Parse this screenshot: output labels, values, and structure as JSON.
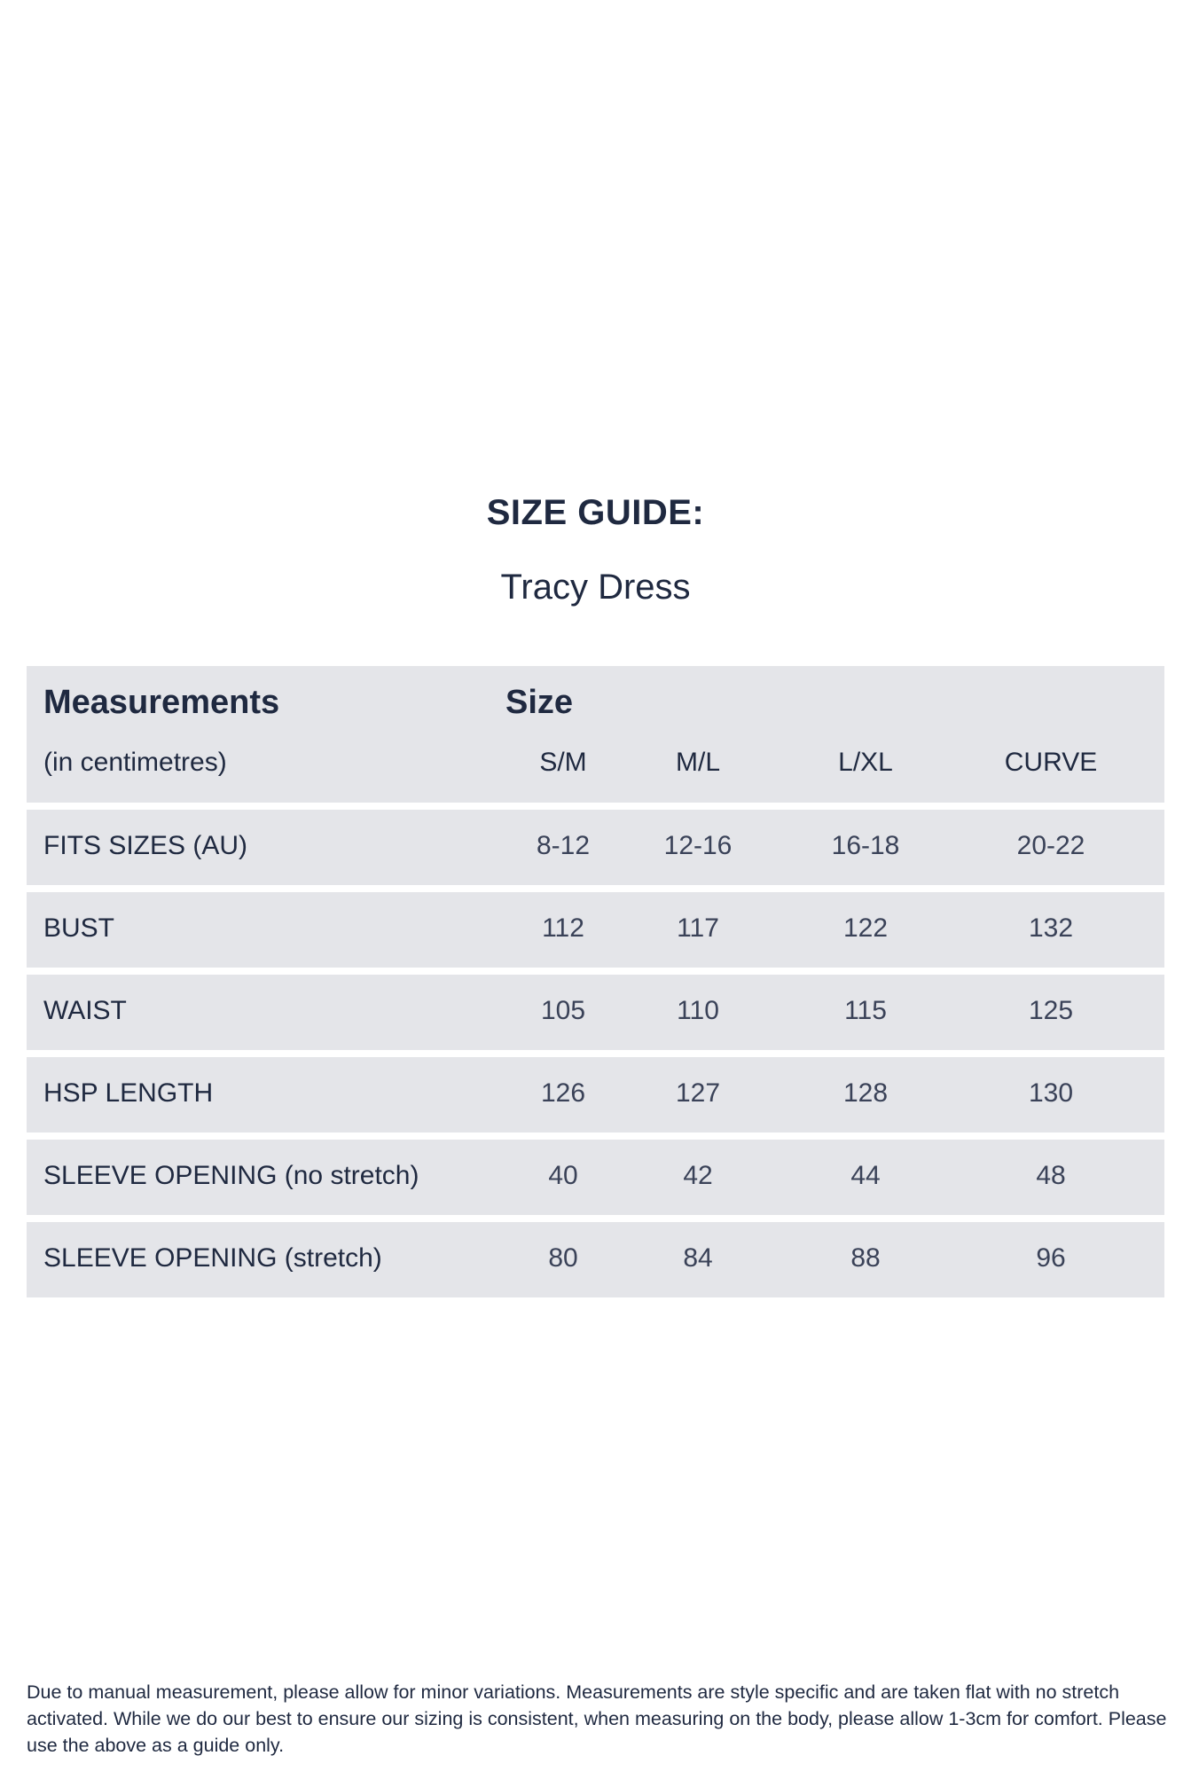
{
  "title": "SIZE GUIDE:",
  "subtitle": "Tracy Dress",
  "table": {
    "measurements_header": "Measurements",
    "unit_note": "(in centimetres)",
    "size_header": "Size",
    "columns": [
      "S/M",
      "M/L",
      "L/XL",
      "CURVE"
    ],
    "rows": [
      {
        "label": "FITS SIZES (AU)",
        "values": [
          "8-12",
          "12-16",
          "16-18",
          "20-22"
        ]
      },
      {
        "label": "BUST",
        "values": [
          "112",
          "117",
          "122",
          "132"
        ]
      },
      {
        "label": "WAIST",
        "values": [
          "105",
          "110",
          "115",
          "125"
        ]
      },
      {
        "label": "HSP LENGTH",
        "values": [
          "126",
          "127",
          "128",
          "130"
        ]
      },
      {
        "label": "SLEEVE OPENING (no stretch)",
        "values": [
          "40",
          "42",
          "44",
          "48"
        ]
      },
      {
        "label": "SLEEVE OPENING (stretch)",
        "values": [
          "80",
          "84",
          "88",
          "96"
        ]
      }
    ]
  },
  "footer": "Due to manual measurement, please allow for minor variations. Measurements are style specific and are taken flat with no stretch activated. While we do our best to ensure our sizing is consistent, when measuring on the body, please allow 1-3cm for comfort. Please use the above as a guide only.",
  "colors": {
    "text": "#1f2940",
    "row_bg": "#e4e5e9",
    "background": "#ffffff"
  }
}
